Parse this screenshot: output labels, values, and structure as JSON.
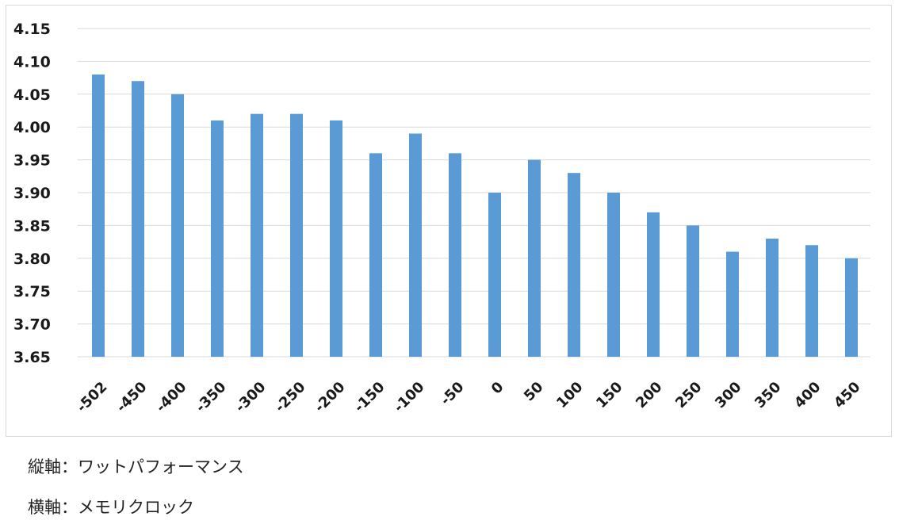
{
  "chart_data": {
    "type": "bar",
    "categories": [
      "-502",
      "-450",
      "-400",
      "-350",
      "-300",
      "-250",
      "-200",
      "-150",
      "-100",
      "-50",
      "0",
      "50",
      "100",
      "150",
      "200",
      "250",
      "300",
      "350",
      "400",
      "450"
    ],
    "values": [
      4.08,
      4.07,
      4.05,
      4.01,
      4.02,
      4.02,
      4.01,
      3.96,
      3.99,
      3.96,
      3.9,
      3.95,
      3.93,
      3.9,
      3.87,
      3.85,
      3.81,
      3.83,
      3.82,
      3.8
    ],
    "ylim": [
      3.65,
      4.15
    ],
    "yticks": [
      "4.15",
      "4.10",
      "4.05",
      "4.00",
      "3.95",
      "3.90",
      "3.85",
      "3.80",
      "3.75",
      "3.70",
      "3.65"
    ],
    "grid": true,
    "legend": "none",
    "bar_color": "#5b9bd5",
    "grid_color": "#d9d9d9"
  },
  "captions": {
    "y_axis": "縦軸：ワットパフォーマンス",
    "x_axis": "横軸：メモリクロック"
  }
}
